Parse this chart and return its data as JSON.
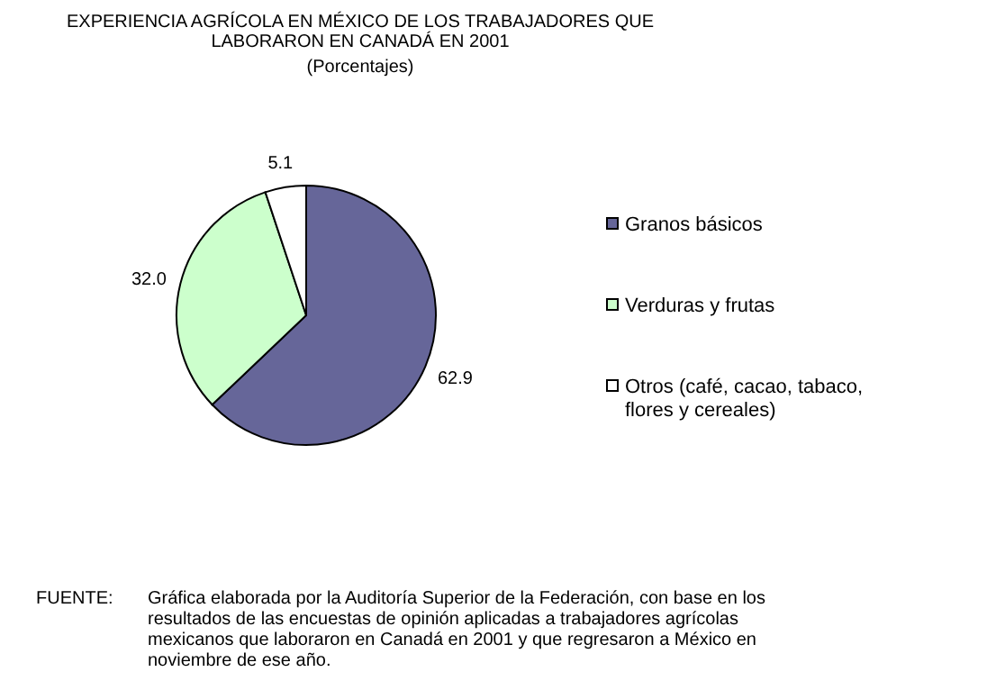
{
  "chart_data": {
    "type": "pie",
    "title": "EXPERIENCIA AGRÍCOLA  EN MÉXICO DE LOS TRABAJADORES QUE LABORARON EN CANADÁ EN 2001",
    "subtitle": "(Porcentajes)",
    "categories": [
      "Granos básicos",
      "Verduras y frutas",
      "Otros (café, cacao, tabaco, flores y cereales)"
    ],
    "values": [
      62.9,
      32.0,
      5.1
    ],
    "value_labels": [
      "62.9",
      "32.0",
      "5.1"
    ],
    "colors": [
      "#666699",
      "#ccffcc",
      "#ffffff"
    ],
    "legend": "right",
    "annotations": [
      "FUENTE:",
      "Gráfica elaborada por la Auditoría Superior de la Federación, con base en los resultados de  las encuestas de opinión aplicadas a trabajadores agrícolas mexicanos que laboraron en Canadá en 2001 y que regresaron a México en noviembre de ese año."
    ]
  }
}
